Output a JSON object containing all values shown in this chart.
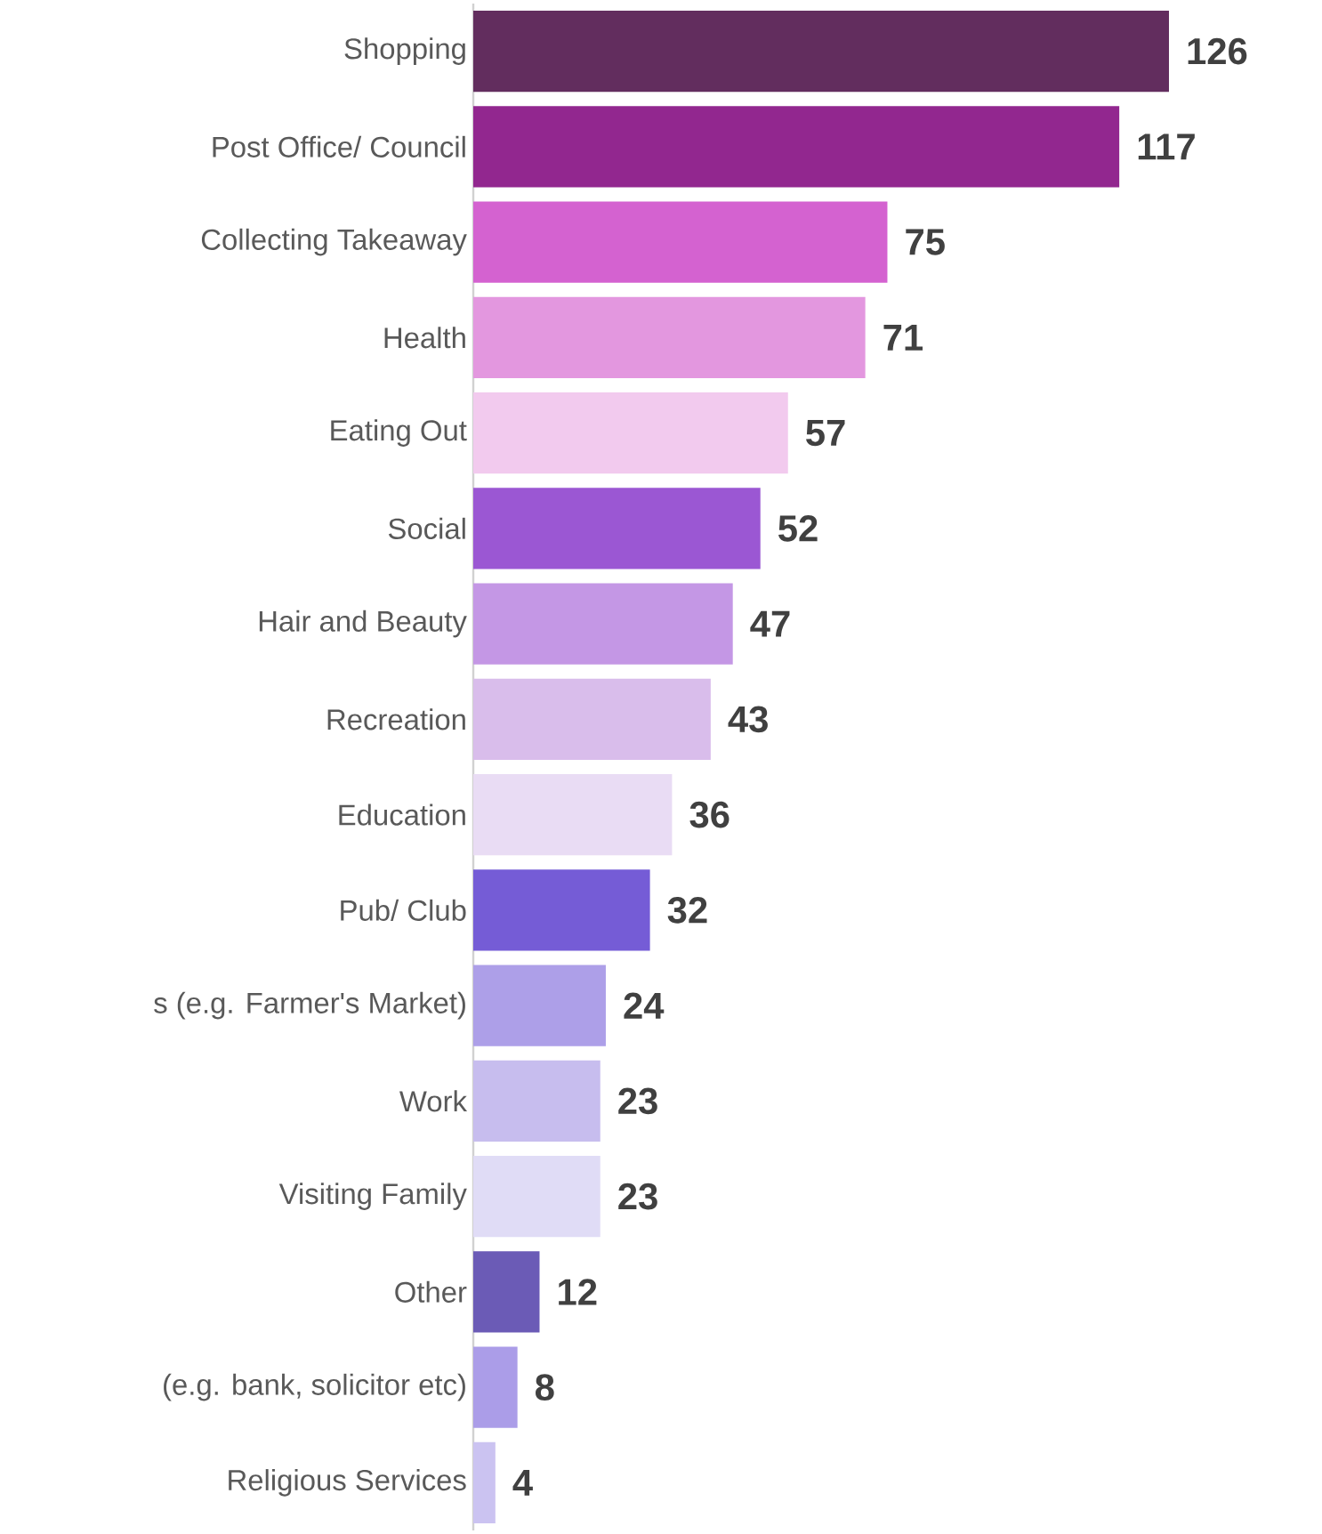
{
  "chart_data": {
    "type": "bar",
    "orientation": "horizontal",
    "data_labels": true,
    "categories": [
      "Shopping",
      "Post Office/ Council",
      "Collecting Takeaway",
      "Health",
      "Eating Out",
      "Social",
      "Hair and Beauty",
      "Recreation",
      "Education",
      "Pub/ Club",
      "s (e.g. Farmer's Market)",
      "Work",
      "Visiting Family",
      "Other",
      "(e.g. bank, solicitor etc)",
      "Religious Services"
    ],
    "values": [
      126,
      117,
      75,
      71,
      57,
      52,
      47,
      43,
      36,
      32,
      24,
      23,
      23,
      12,
      8,
      4
    ],
    "colors": [
      "#622d5e",
      "#92278f",
      "#d462d0",
      "#e397df",
      "#f2caee",
      "#9b57d3",
      "#c497e5",
      "#d9bdeb",
      "#e9dcf4",
      "#755cd6",
      "#ad9fe8",
      "#c7bdee",
      "#e0dcf6",
      "#6b5bb6",
      "#ab9de8",
      "#cbc3f1"
    ]
  }
}
